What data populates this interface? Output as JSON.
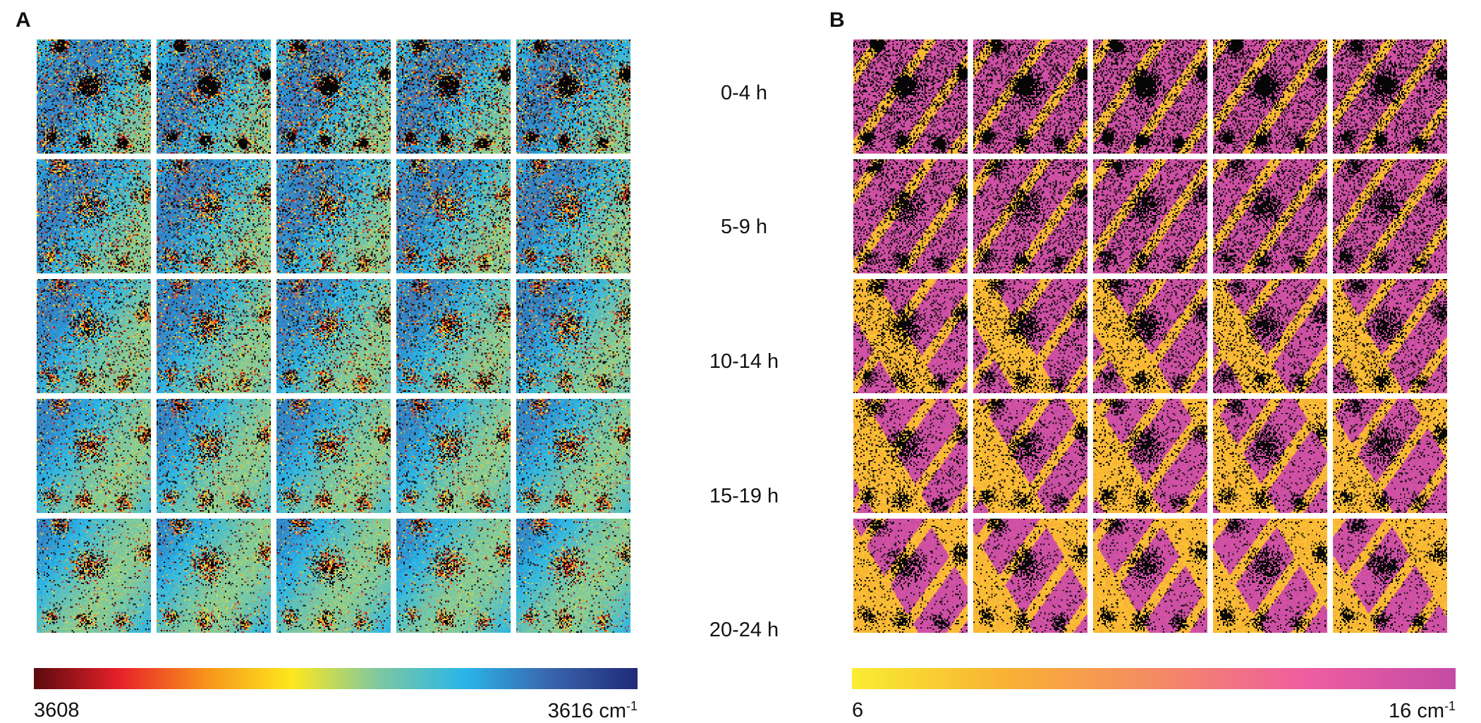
{
  "panels": [
    {
      "letter": "A",
      "colorbar": {
        "min_label": "3608",
        "max_label": "3616",
        "unit": "cm",
        "unit_exponent": "-1",
        "stops": [
          "#5c0a0e",
          "#e8212a",
          "#f7941d",
          "#fde81d",
          "#7dc8a0",
          "#29b5e8",
          "#3a64ad",
          "#1f2a78"
        ]
      }
    },
    {
      "letter": "B",
      "colorbar": {
        "min_label": "6",
        "max_label": "16",
        "unit": "cm",
        "unit_exponent": "-1",
        "stops": [
          "#f9ed32",
          "#f9b233",
          "#f48b63",
          "#ef5ea0",
          "#c44ca5"
        ]
      }
    }
  ],
  "time_labels": [
    "0-4 h",
    "5-9 h",
    "10-14 h",
    "15-19 h",
    "20-24 h"
  ]
}
